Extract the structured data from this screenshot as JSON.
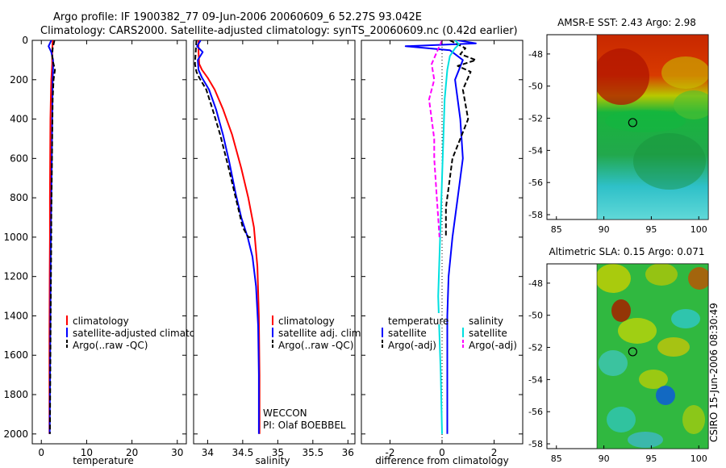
{
  "figure": {
    "title_line1": "Argo profile: IF 1900382_77 09-Jun-2006 20060609_6 52.27S 93.042E",
    "title_line2": "Climatology: CARS2000. Satellite-adjusted climatology: synTS_20060609.nc (0.42d earlier)",
    "side_stamp": "CSIRO 15-Jun-2006 08:30:49"
  },
  "colors": {
    "climatology": "#ff0000",
    "satellite": "#0000ff",
    "argo": "#000000",
    "satellite_diff_salinity": "#00e0e0",
    "argo_diff_salinity": "#ff00ff"
  },
  "chart_data": [
    {
      "type": "line",
      "id": "temperature",
      "xlabel": "temperature",
      "ylabel": "",
      "xlim": [
        -2,
        32
      ],
      "ylim": [
        2050,
        0
      ],
      "xticks": [
        0,
        10,
        20,
        30
      ],
      "yticks": [
        0,
        200,
        400,
        600,
        800,
        1000,
        1200,
        1400,
        1600,
        1800,
        2000
      ],
      "legend": [
        "climatology",
        "satellite-adjusted climatology",
        "Argo(..raw -QC)"
      ],
      "series": [
        {
          "name": "climatology",
          "style": "solid",
          "x": [
            2.5,
            2.4,
            2.4,
            2.2,
            2.1,
            2.0,
            1.95,
            1.9,
            1.9,
            1.85,
            1.8,
            1.8,
            1.8
          ],
          "y": [
            0,
            60,
            120,
            200,
            300,
            400,
            600,
            800,
            1000,
            1200,
            1500,
            1800,
            2000
          ]
        },
        {
          "name": "satellite-adjusted climatology",
          "style": "solid",
          "x": [
            2.2,
            1.6,
            2.2,
            2.6,
            2.6,
            2.5,
            2.4,
            2.3,
            2.2,
            2.1,
            2.0,
            1.9,
            1.85
          ],
          "y": [
            0,
            30,
            60,
            100,
            140,
            200,
            400,
            600,
            800,
            1000,
            1400,
            1800,
            2000
          ]
        },
        {
          "name": "Argo(..raw -QC)",
          "style": "dashed",
          "x": [
            2.9,
            2.5,
            2.4,
            2.6,
            3.0,
            2.7,
            2.5,
            2.4,
            2.3,
            2.2,
            2.2,
            2.1,
            2.0,
            1.9
          ],
          "y": [
            0,
            40,
            80,
            110,
            150,
            200,
            300,
            500,
            700,
            900,
            1000,
            1300,
            1600,
            2000
          ]
        }
      ]
    },
    {
      "type": "line",
      "id": "salinity",
      "xlabel": "salinity",
      "ylabel": "",
      "xlim": [
        33.8,
        36.1
      ],
      "ylim": [
        2050,
        0
      ],
      "xticks": [
        34,
        34.5,
        35,
        35.5,
        36
      ],
      "xticklabels": [
        "34",
        "34.5",
        "35",
        "35.5",
        "36"
      ],
      "legend": [
        "climatology",
        "satellite adj. clim.",
        "Argo(..raw -QC)"
      ],
      "annotations": [
        "WECCON",
        "PI: Olaf BOEBBEL"
      ],
      "series": [
        {
          "name": "climatology",
          "style": "solid",
          "x": [
            33.87,
            33.87,
            33.88,
            33.92,
            34.0,
            34.1,
            34.22,
            34.35,
            34.48,
            34.58,
            34.66,
            34.71,
            34.73,
            34.74,
            34.74
          ],
          "y": [
            0,
            60,
            120,
            150,
            190,
            250,
            350,
            480,
            650,
            800,
            950,
            1150,
            1400,
            1700,
            2000
          ]
        },
        {
          "name": "satellite adj. clim.",
          "style": "solid",
          "x": [
            33.9,
            33.85,
            33.93,
            33.86,
            33.87,
            33.92,
            34.02,
            34.12,
            34.22,
            34.31,
            34.4,
            34.48,
            34.57,
            34.64,
            34.69,
            34.72,
            34.73,
            34.73
          ],
          "y": [
            0,
            30,
            60,
            100,
            150,
            190,
            250,
            350,
            480,
            620,
            780,
            900,
            1000,
            1100,
            1250,
            1450,
            1700,
            2000
          ]
        },
        {
          "name": "Argo(..raw -QC)",
          "style": "dashed",
          "x": [
            33.84,
            33.83,
            33.82,
            33.84,
            33.88,
            33.98,
            34.07,
            34.18,
            34.3,
            34.4,
            34.5,
            34.58,
            34.62
          ],
          "y": [
            0,
            60,
            120,
            160,
            190,
            250,
            350,
            480,
            650,
            800,
            950,
            1000,
            1000
          ]
        }
      ]
    },
    {
      "type": "line",
      "id": "difference",
      "xlabel": "difference from climatology",
      "ylabel": "",
      "xlim": [
        -3.1,
        3.1
      ],
      "ylim": [
        2050,
        0
      ],
      "xticks": [
        -2,
        0,
        2
      ],
      "legend_temperature_title": "temperature",
      "legend_salinity_title": "salinity",
      "legend_temperature": [
        "satellite",
        "Argo(-adj)"
      ],
      "legend_salinity": [
        "satellite",
        "Argo(-adj)"
      ],
      "series": [
        {
          "name": "temperature satellite",
          "style": "solid",
          "x": [
            0.6,
            1.3,
            -1.4,
            0.3,
            0.8,
            0.5,
            0.7,
            0.8,
            0.6,
            0.4,
            0.25,
            0.2,
            0.2,
            0.2
          ],
          "y": [
            0,
            15,
            30,
            50,
            100,
            200,
            400,
            600,
            800,
            1000,
            1200,
            1400,
            1700,
            2000
          ]
        },
        {
          "name": "temperature Argo(-adj)",
          "style": "dashed",
          "x": [
            0.3,
            0.9,
            0.7,
            1.3,
            0.6,
            1.1,
            0.8,
            1.0,
            0.7,
            0.4,
            0.3,
            0.15,
            0.15
          ],
          "y": [
            0,
            40,
            70,
            100,
            130,
            160,
            250,
            400,
            500,
            600,
            700,
            850,
            1000
          ]
        },
        {
          "name": "salinity satellite",
          "style": "solid",
          "x": [
            0.5,
            0.65,
            0.5,
            0.3,
            0.2,
            0.1,
            0.05,
            0.0,
            -0.05,
            -0.1,
            -0.15,
            -0.1,
            -0.05,
            0.0
          ],
          "y": [
            0,
            20,
            40,
            80,
            150,
            300,
            500,
            700,
            900,
            1100,
            1300,
            1500,
            1700,
            2000
          ]
        },
        {
          "name": "salinity Argo(-adj)",
          "style": "dashed",
          "x": [
            0.0,
            -0.2,
            -0.4,
            -0.3,
            -0.5,
            -0.4,
            -0.3,
            -0.3,
            -0.25,
            -0.2,
            -0.15,
            -0.1
          ],
          "y": [
            0,
            60,
            120,
            200,
            300,
            400,
            500,
            600,
            700,
            800,
            900,
            1000
          ]
        }
      ]
    },
    {
      "type": "heatmap",
      "id": "sst-map",
      "title": "AMSR-E SST: 2.43 Argo: 2.98",
      "xlim": [
        84,
        101
      ],
      "ylim": [
        -58.3,
        -46.8
      ],
      "xticks": [
        85,
        90,
        95,
        100
      ],
      "yticks": [
        -48,
        -50,
        -52,
        -54,
        -56,
        -58
      ],
      "data_extent_x": [
        90,
        101
      ],
      "marker": {
        "lon": 93.04,
        "lat": -52.27
      }
    },
    {
      "type": "heatmap",
      "id": "sla-map",
      "title": "Altimetric SLA: 0.15 Argo: 0.071",
      "xlim": [
        84,
        101
      ],
      "ylim": [
        -58.3,
        -46.8
      ],
      "xticks": [
        85,
        90,
        95,
        100
      ],
      "yticks": [
        -48,
        -50,
        -52,
        -54,
        -56,
        -58
      ],
      "data_extent_x": [
        90,
        101
      ],
      "marker": {
        "lon": 93.04,
        "lat": -52.27
      }
    }
  ]
}
